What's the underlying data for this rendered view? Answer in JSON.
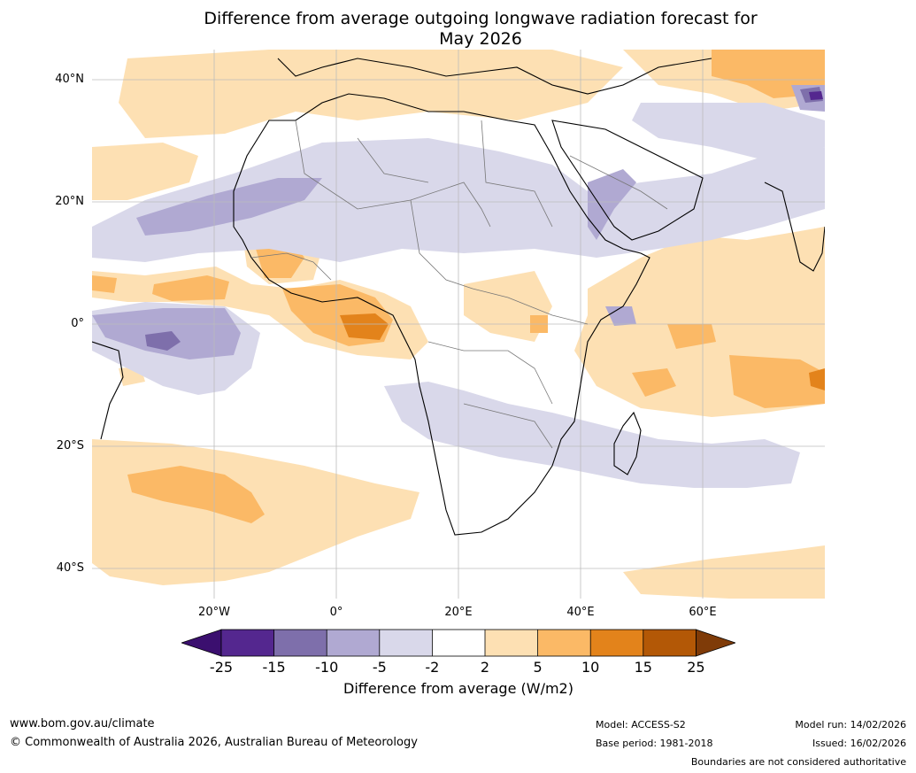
{
  "title_line1": "Difference from average outgoing longwave radiation forecast for",
  "title_line2": "May 2026",
  "lat_labels": [
    "40°N",
    "20°N",
    "0°",
    "20°S",
    "40°S"
  ],
  "lon_labels": [
    "20°W",
    "0°",
    "20°E",
    "40°E",
    "60°E"
  ],
  "colorbar": {
    "ticks": [
      "-25",
      "-15",
      "-10",
      "-5",
      "-2",
      "2",
      "5",
      "10",
      "15",
      "25"
    ],
    "label": "Difference from average (W/m2)",
    "colors": [
      "#3b0f6f",
      "#54278f",
      "#7e6fab",
      "#b0a9d2",
      "#d9d8ea",
      "#ffffff",
      "#fde0b3",
      "#fbb966",
      "#e3831b",
      "#b35806",
      "#7f3b08"
    ]
  },
  "footer": {
    "website": "www.bom.gov.au/climate",
    "copyright": "© Commonwealth of Australia 2026, Australian Bureau of Meteorology",
    "model": "Model: ACCESS-S2",
    "base_period": "Base period: 1981-2018",
    "model_run": "Model run: 14/02/2026",
    "issued": "Issued: 16/02/2026",
    "disclaimer": "Boundaries are not considered authoritative"
  }
}
